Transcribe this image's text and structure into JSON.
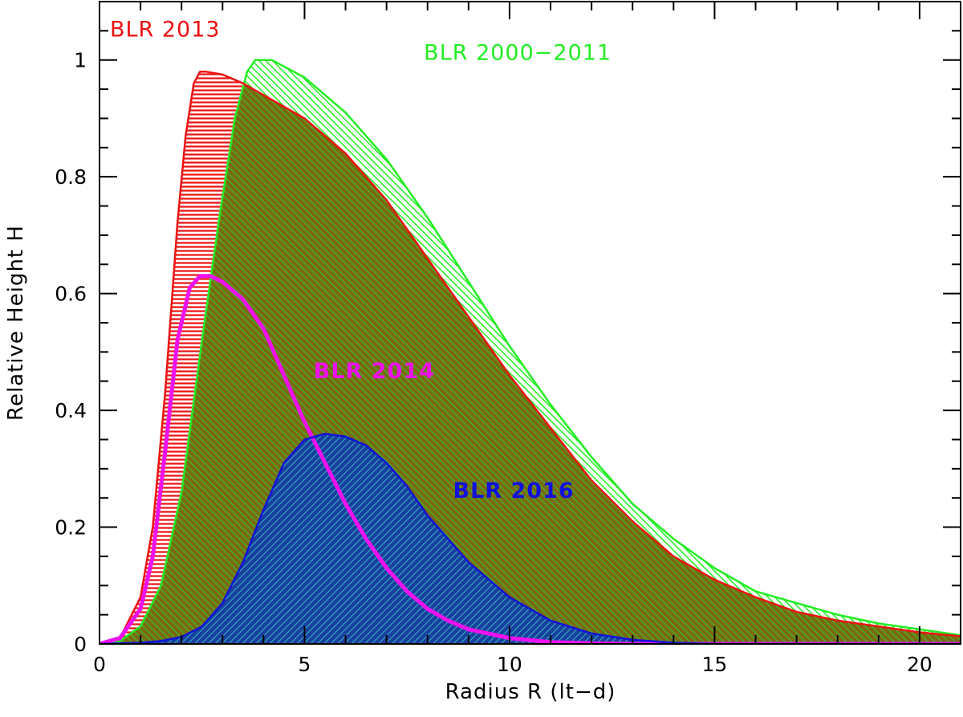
{
  "chart_data": {
    "type": "area",
    "title": "",
    "xlabel": "Radius R (lt−d)",
    "ylabel": "Relative Height H",
    "xlim": [
      0,
      21
    ],
    "ylim": [
      0,
      1.1
    ],
    "x_ticks": [
      0,
      5,
      10,
      15,
      20
    ],
    "x_tick_labels": [
      "0",
      "5",
      "10",
      "15",
      "20"
    ],
    "y_ticks": [
      0,
      0.2,
      0.4,
      0.6,
      0.8,
      1
    ],
    "y_tick_labels": [
      "0",
      "0.2",
      "0.4",
      "0.6",
      "0.8",
      "1"
    ],
    "grid": false,
    "legend": "none",
    "series": [
      {
        "name": "BLR 2000−2011",
        "color": "#22ee22",
        "fill": "hatched-diagonal",
        "x": [
          0,
          0.5,
          1,
          1.5,
          2,
          2.5,
          2.9,
          3.3,
          3.6,
          3.8,
          4.2,
          5,
          6,
          7,
          8,
          9,
          10,
          11,
          12,
          13,
          14,
          15,
          16,
          17,
          18,
          19,
          20,
          21
        ],
        "y": [
          0,
          0.005,
          0.03,
          0.1,
          0.26,
          0.52,
          0.72,
          0.9,
          0.98,
          1.0,
          1.0,
          0.97,
          0.91,
          0.83,
          0.73,
          0.62,
          0.51,
          0.41,
          0.32,
          0.24,
          0.18,
          0.13,
          0.09,
          0.07,
          0.05,
          0.035,
          0.025,
          0.015
        ]
      },
      {
        "name": "BLR 2013",
        "color": "#ee1111",
        "fill": "hatched-horizontal",
        "x": [
          0,
          0.5,
          1,
          1.3,
          1.6,
          1.9,
          2.1,
          2.3,
          2.45,
          2.6,
          3,
          3.5,
          4,
          5,
          6,
          7,
          8,
          9,
          10,
          11,
          12,
          13,
          14,
          15,
          16,
          17,
          18,
          19,
          20,
          21
        ],
        "y": [
          0,
          0.01,
          0.08,
          0.2,
          0.43,
          0.72,
          0.87,
          0.96,
          0.98,
          0.98,
          0.975,
          0.96,
          0.94,
          0.9,
          0.84,
          0.76,
          0.66,
          0.56,
          0.46,
          0.37,
          0.28,
          0.21,
          0.15,
          0.11,
          0.08,
          0.055,
          0.04,
          0.03,
          0.02,
          0.013
        ]
      },
      {
        "name": "BLR 2014",
        "color": "#ee11ee",
        "fill": "none",
        "x": [
          0,
          0.5,
          1,
          1.3,
          1.6,
          1.9,
          2.2,
          2.45,
          2.7,
          3,
          3.5,
          4,
          4.5,
          5,
          5.5,
          6,
          6.5,
          7,
          7.5,
          8,
          8.5,
          9,
          10,
          11,
          12,
          13,
          21
        ],
        "y": [
          0,
          0.01,
          0.06,
          0.15,
          0.33,
          0.52,
          0.61,
          0.63,
          0.63,
          0.62,
          0.59,
          0.54,
          0.46,
          0.38,
          0.31,
          0.24,
          0.18,
          0.13,
          0.09,
          0.06,
          0.04,
          0.025,
          0.01,
          0.003,
          0.001,
          0,
          0
        ]
      },
      {
        "name": "BLR 2016",
        "color": "#1111dd",
        "fill": "cross-hatched",
        "x": [
          0,
          1,
          1.5,
          2,
          2.5,
          3,
          3.5,
          4,
          4.5,
          5,
          5.5,
          6,
          6.5,
          7,
          7.5,
          8,
          8.5,
          9,
          10,
          11,
          12,
          13,
          14,
          15,
          21
        ],
        "y": [
          0,
          0.002,
          0.005,
          0.012,
          0.03,
          0.07,
          0.14,
          0.23,
          0.31,
          0.35,
          0.36,
          0.355,
          0.34,
          0.31,
          0.27,
          0.22,
          0.18,
          0.14,
          0.08,
          0.04,
          0.018,
          0.007,
          0.002,
          0,
          0
        ]
      }
    ],
    "annotations": [
      {
        "text": "BLR 2013",
        "series": "BLR 2013",
        "x": 1.6,
        "y": 1.04,
        "bold": false
      },
      {
        "text": "BLR 2000−2011",
        "series": "BLR 2000−2011",
        "x": 10.2,
        "y": 1.0,
        "bold": false
      },
      {
        "text": "BLR 2014",
        "series": "BLR 2014",
        "x": 6.7,
        "y": 0.455,
        "bold": true
      },
      {
        "text": "BLR 2016",
        "series": "BLR 2016",
        "x": 10.1,
        "y": 0.25,
        "bold": true
      }
    ]
  }
}
